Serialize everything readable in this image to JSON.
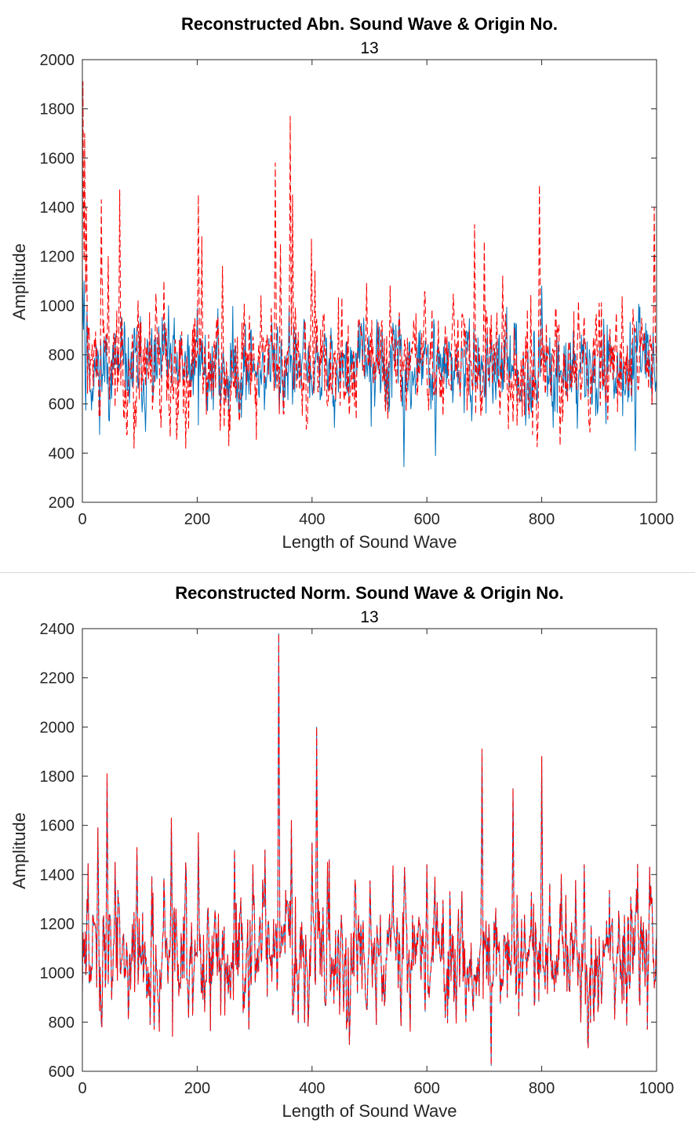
{
  "chart_data": [
    {
      "type": "line",
      "title": "Reconstructed Abn. Sound Wave & Origin No.",
      "subtitle": "13",
      "xlabel": "Length of Sound Wave",
      "ylabel": "Amplitude",
      "xlim": [
        0,
        1000
      ],
      "ylim": [
        200,
        2000
      ],
      "xticks": [
        "0",
        "200",
        "400",
        "600",
        "800",
        "1000"
      ],
      "yticks": [
        "200",
        "400",
        "600",
        "800",
        "1000",
        "1200",
        "1400",
        "1600",
        "1800",
        "2000"
      ],
      "grid": false,
      "series": [
        {
          "style": "solid",
          "color": "#0072bd",
          "base": 740,
          "sd": 85,
          "seed": 11,
          "spikes": [
            [
              0,
              1160
            ],
            [
              3,
              1100
            ],
            [
              8,
              980
            ],
            [
              150,
              1000
            ],
            [
              200,
              990
            ],
            [
              330,
              930
            ],
            [
              360,
              990
            ],
            [
              490,
              950
            ],
            [
              560,
              345
            ],
            [
              615,
              390
            ],
            [
              800,
              1080
            ],
            [
              963,
              410
            ]
          ]
        },
        {
          "style": "dashed",
          "color": "#ff0000",
          "base": 760,
          "sd": 105,
          "seed": 29,
          "spikes": [
            [
              1,
              1910
            ],
            [
              4,
              1700
            ],
            [
              7,
              1400
            ],
            [
              33,
              1430
            ],
            [
              45,
              1200
            ],
            [
              65,
              1470
            ],
            [
              90,
              420
            ],
            [
              142,
              1100
            ],
            [
              180,
              420
            ],
            [
              202,
              1450
            ],
            [
              208,
              1280
            ],
            [
              244,
              1160
            ],
            [
              255,
              430
            ],
            [
              336,
              1580
            ],
            [
              345,
              1250
            ],
            [
              362,
              1770
            ],
            [
              366,
              1450
            ],
            [
              399,
              1270
            ],
            [
              405,
              1140
            ],
            [
              495,
              1090
            ],
            [
              536,
              1080
            ],
            [
              683,
              1330
            ],
            [
              700,
              1260
            ],
            [
              732,
              1120
            ],
            [
              796,
              1490
            ],
            [
              832,
              430
            ],
            [
              900,
              1010
            ],
            [
              996,
              1400
            ]
          ]
        }
      ]
    },
    {
      "type": "line",
      "title": "Reconstructed Norm. Sound Wave & Origin No.",
      "subtitle": "13",
      "xlabel": "Length of Sound Wave",
      "ylabel": "Amplitude",
      "xlim": [
        0,
        1000
      ],
      "ylim": [
        600,
        2400
      ],
      "xticks": [
        "0",
        "200",
        "400",
        "600",
        "800",
        "1000"
      ],
      "yticks": [
        "600",
        "800",
        "1000",
        "1200",
        "1400",
        "1600",
        "1800",
        "2000",
        "2200",
        "2400"
      ],
      "grid": false,
      "series": [
        {
          "style": "solid",
          "color": "#0072bd",
          "base": 1080,
          "sd": 120,
          "seed": 47,
          "spikes": [
            [
              27,
              1590
            ],
            [
              43,
              1810
            ],
            [
              57,
              1450
            ],
            [
              95,
              1510
            ],
            [
              118,
              790
            ],
            [
              125,
              770
            ],
            [
              155,
              1630
            ],
            [
              202,
              1570
            ],
            [
              265,
              1500
            ],
            [
              290,
              770
            ],
            [
              297,
              1440
            ],
            [
              318,
              1500
            ],
            [
              342,
              2380
            ],
            [
              364,
              1620
            ],
            [
              400,
              1530
            ],
            [
              408,
              2000
            ],
            [
              427,
              1450
            ],
            [
              600,
              1440
            ],
            [
              696,
              1910
            ],
            [
              750,
              1750
            ],
            [
              800,
              1880
            ],
            [
              868,
              800
            ],
            [
              874,
              1440
            ],
            [
              988,
              1430
            ]
          ]
        },
        {
          "style": "dashed",
          "color": "#ff0000",
          "base": 1080,
          "sd": 120,
          "seed": 47,
          "spikes": [
            [
              27,
              1590
            ],
            [
              43,
              1810
            ],
            [
              57,
              1450
            ],
            [
              95,
              1510
            ],
            [
              118,
              790
            ],
            [
              125,
              770
            ],
            [
              155,
              1630
            ],
            [
              202,
              1570
            ],
            [
              265,
              1500
            ],
            [
              290,
              770
            ],
            [
              297,
              1440
            ],
            [
              318,
              1500
            ],
            [
              342,
              2380
            ],
            [
              364,
              1620
            ],
            [
              400,
              1530
            ],
            [
              408,
              2000
            ],
            [
              427,
              1450
            ],
            [
              600,
              1440
            ],
            [
              696,
              1910
            ],
            [
              750,
              1750
            ],
            [
              800,
              1880
            ],
            [
              868,
              800
            ],
            [
              874,
              1440
            ],
            [
              988,
              1430
            ]
          ]
        }
      ]
    }
  ]
}
